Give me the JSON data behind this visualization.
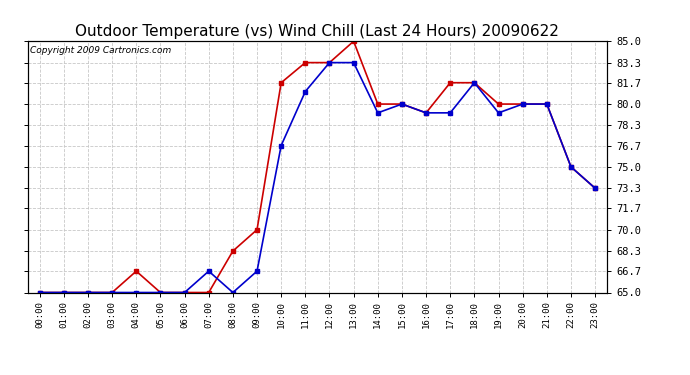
{
  "title": "Outdoor Temperature (vs) Wind Chill (Last 24 Hours) 20090622",
  "copyright": "Copyright 2009 Cartronics.com",
  "hours": [
    "00:00",
    "01:00",
    "02:00",
    "03:00",
    "04:00",
    "05:00",
    "06:00",
    "07:00",
    "08:00",
    "09:00",
    "10:00",
    "11:00",
    "12:00",
    "13:00",
    "14:00",
    "15:00",
    "16:00",
    "17:00",
    "18:00",
    "19:00",
    "20:00",
    "21:00",
    "22:00",
    "23:00"
  ],
  "temp": [
    65.0,
    65.0,
    65.0,
    65.0,
    66.7,
    65.0,
    65.0,
    65.0,
    68.3,
    70.0,
    81.7,
    83.3,
    83.3,
    85.0,
    80.0,
    80.0,
    79.3,
    81.7,
    81.7,
    80.0,
    80.0,
    80.0,
    75.0,
    73.3
  ],
  "windchill": [
    65.0,
    65.0,
    65.0,
    65.0,
    65.0,
    65.0,
    65.0,
    66.7,
    65.0,
    66.7,
    76.7,
    81.0,
    83.3,
    83.3,
    79.3,
    80.0,
    79.3,
    79.3,
    81.7,
    79.3,
    80.0,
    80.0,
    75.0,
    73.3
  ],
  "temp_color": "#cc0000",
  "windchill_color": "#0000cc",
  "ylim": [
    65.0,
    85.0
  ],
  "yticks": [
    65.0,
    66.7,
    68.3,
    70.0,
    71.7,
    73.3,
    75.0,
    76.7,
    78.3,
    80.0,
    81.7,
    83.3,
    85.0
  ],
  "bg_color": "#ffffff",
  "grid_color": "#c8c8c8",
  "title_fontsize": 11,
  "copyright_fontsize": 6.5,
  "markersize": 3,
  "linewidth": 1.2
}
